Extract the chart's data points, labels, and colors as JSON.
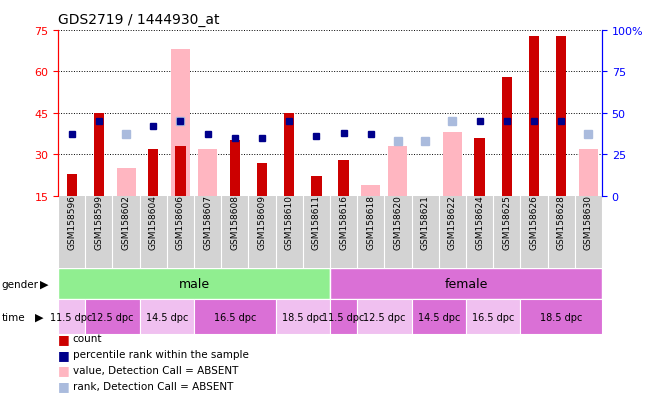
{
  "title": "GDS2719 / 1444930_at",
  "samples": [
    "GSM158596",
    "GSM158599",
    "GSM158602",
    "GSM158604",
    "GSM158606",
    "GSM158607",
    "GSM158608",
    "GSM158609",
    "GSM158610",
    "GSM158611",
    "GSM158616",
    "GSM158618",
    "GSM158620",
    "GSM158621",
    "GSM158622",
    "GSM158624",
    "GSM158625",
    "GSM158626",
    "GSM158628",
    "GSM158630"
  ],
  "count_values": [
    23,
    45,
    null,
    32,
    33,
    null,
    35,
    27,
    45,
    22,
    28,
    null,
    null,
    null,
    null,
    36,
    58,
    73,
    73,
    null
  ],
  "rank_values": [
    37,
    45,
    null,
    42,
    45,
    37,
    35,
    35,
    45,
    36,
    38,
    37,
    null,
    null,
    null,
    45,
    45,
    45,
    45,
    null
  ],
  "absent_count_values": [
    null,
    null,
    25,
    null,
    68,
    32,
    null,
    null,
    null,
    null,
    null,
    19,
    33,
    14,
    38,
    null,
    null,
    null,
    null,
    32
  ],
  "absent_rank_values": [
    null,
    null,
    37,
    null,
    45,
    null,
    null,
    null,
    null,
    null,
    null,
    null,
    33,
    33,
    45,
    null,
    null,
    null,
    null,
    37
  ],
  "ymin": 15,
  "ymax": 75,
  "yticks_left": [
    15,
    30,
    45,
    60,
    75
  ],
  "yticks_right": [
    0,
    25,
    50,
    75,
    100
  ],
  "count_color": "#CC0000",
  "rank_color": "#00008B",
  "absent_count_color": "#FFB6C1",
  "absent_rank_color": "#AABBDD",
  "male_color": "#90EE90",
  "female_color": "#DA70D6",
  "time_colors_male": [
    "#F0C0F0",
    "#DA70D6"
  ],
  "time_colors_female": [
    "#F0C0F0",
    "#DA70D6"
  ],
  "label_bg": "#D3D3D3",
  "time_groups": [
    [
      0,
      0,
      "11.5 dpc"
    ],
    [
      1,
      2,
      "12.5 dpc"
    ],
    [
      3,
      4,
      "14.5 dpc"
    ],
    [
      5,
      7,
      "16.5 dpc"
    ],
    [
      8,
      9,
      "18.5 dpc"
    ],
    [
      10,
      10,
      "11.5 dpc"
    ],
    [
      11,
      12,
      "12.5 dpc"
    ],
    [
      13,
      14,
      "14.5 dpc"
    ],
    [
      15,
      16,
      "16.5 dpc"
    ],
    [
      17,
      19,
      "18.5 dpc"
    ]
  ]
}
